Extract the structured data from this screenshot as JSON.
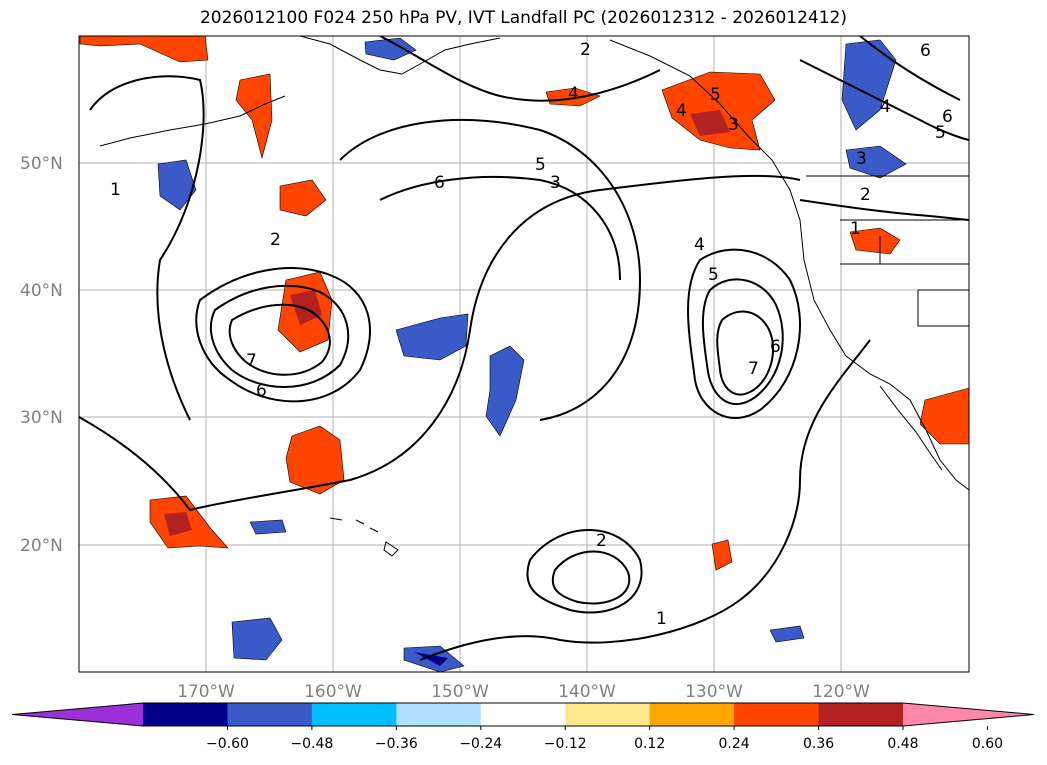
{
  "title": "2026012100 F024 250 hPa PV, IVT Landfall PC (2026012312 - 2026012412)",
  "lat_labels": [
    "50°N",
    "40°N",
    "30°N",
    "20°N"
  ],
  "lon_labels": [
    "170°W",
    "160°W",
    "150°W",
    "140°W",
    "130°W",
    "120°W"
  ],
  "contour_labels": [
    "1",
    "2",
    "2",
    "3",
    "4",
    "5",
    "6",
    "7",
    "5",
    "4",
    "6",
    "7",
    "6",
    "1",
    "2",
    "1",
    "2",
    "3",
    "5",
    "6",
    "4",
    "5",
    "3",
    "4",
    "6"
  ],
  "colorbar": {
    "colors": [
      "#9b30d9",
      "#00008b",
      "#3a5bc7",
      "#00bfff",
      "#b0e0ff",
      "#ffffff",
      "#ffe88a",
      "#ffa500",
      "#ff4500",
      "#b22222",
      "#ff88aa"
    ],
    "labels": [
      "−0.60",
      "−0.48",
      "−0.36",
      "−0.24",
      "−0.12",
      "0.12",
      "0.24",
      "0.36",
      "0.48",
      "0.60"
    ]
  }
}
